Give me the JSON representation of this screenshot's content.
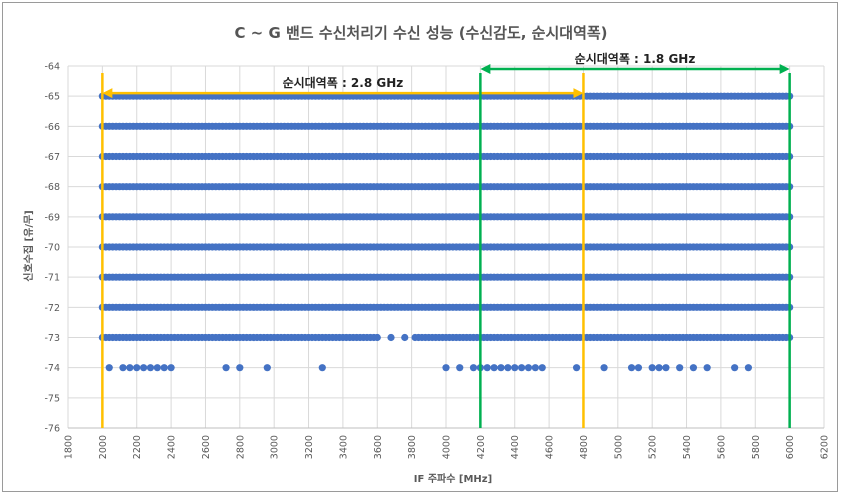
{
  "chart_data": {
    "type": "scatter",
    "title": "C ~ G 밴드 수신처리기 수신 성능 (수신감도, 순시대역폭)",
    "xlabel": "IF 주파수 [MHz]",
    "ylabel": "신호수집 [유/무]",
    "xlim": [
      1800,
      6200
    ],
    "ylim": [
      -76,
      -64
    ],
    "x_ticks": [
      1800,
      2000,
      2200,
      2400,
      2600,
      2800,
      3000,
      3200,
      3400,
      3600,
      3800,
      4000,
      4200,
      4400,
      4600,
      4800,
      5000,
      5200,
      5400,
      5600,
      5800,
      6000,
      6200
    ],
    "x_tick_step": 200,
    "y_ticks": [
      -64,
      -65,
      -66,
      -67,
      -68,
      -69,
      -70,
      -71,
      -72,
      -73,
      -74,
      -75,
      -76
    ],
    "grid": true,
    "marker_color": "#4472c4",
    "continuous_rows": {
      "levels": [
        -65,
        -66,
        -67,
        -68,
        -69,
        -70,
        -71,
        -72
      ],
      "x_start": 2000,
      "x_end": 6000,
      "x_step": 20
    },
    "series": [
      {
        "y": -73,
        "x": [
          2000,
          2020,
          2040,
          2060,
          2080,
          2100,
          2120,
          2140,
          2160,
          2180,
          2200,
          2220,
          2240,
          2260,
          2280,
          2300,
          2320,
          2340,
          2360,
          2380,
          2400,
          2420,
          2440,
          2460,
          2480,
          2500,
          2520,
          2540,
          2560,
          2580,
          2600,
          2620,
          2640,
          2660,
          2680,
          2700,
          2720,
          2740,
          2760,
          2780,
          2800,
          2820,
          2840,
          2860,
          2880,
          2900,
          2920,
          2940,
          2960,
          2980,
          3000,
          3020,
          3040,
          3060,
          3080,
          3100,
          3120,
          3140,
          3160,
          3180,
          3200,
          3220,
          3240,
          3260,
          3280,
          3300,
          3320,
          3340,
          3360,
          3380,
          3400,
          3420,
          3440,
          3460,
          3480,
          3500,
          3520,
          3540,
          3560,
          3580,
          3600,
          3680,
          3760,
          3820,
          3840,
          3860,
          3880,
          3900,
          3920,
          3940,
          3960,
          3980,
          4000,
          4020,
          4040,
          4060,
          4080,
          4100,
          4120,
          4140,
          4160,
          4180,
          4200,
          4220,
          4240,
          4260,
          4280,
          4300,
          4320,
          4340,
          4360,
          4380,
          4400,
          4420,
          4440,
          4460,
          4480,
          4500,
          4520,
          4540,
          4560,
          4580,
          4600,
          4620,
          4640,
          4660,
          4680,
          4700,
          4720,
          4740,
          4760,
          4780,
          4800,
          4820,
          4840,
          4860,
          4880,
          4900,
          4920,
          4940,
          4960,
          4980,
          5000,
          5020,
          5040,
          5060,
          5080,
          5100,
          5120,
          5140,
          5160,
          5180,
          5200,
          5220,
          5240,
          5260,
          5280,
          5300,
          5320,
          5340,
          5360,
          5380,
          5400,
          5420,
          5440,
          5460,
          5480,
          5500,
          5520,
          5540,
          5560,
          5580,
          5600,
          5620,
          5640,
          5660,
          5680,
          5700,
          5720,
          5740,
          5760,
          5780,
          5800,
          5820,
          5840,
          5860,
          5880,
          5900,
          5920,
          5940,
          5960,
          5980,
          6000
        ]
      },
      {
        "y": -74,
        "x": [
          2040,
          2120,
          2160,
          2200,
          2240,
          2280,
          2320,
          2360,
          2400,
          2720,
          2800,
          2960,
          3280,
          4000,
          4080,
          4160,
          4200,
          4240,
          4280,
          4320,
          4360,
          4400,
          4440,
          4480,
          4520,
          4560,
          4760,
          4920,
          5080,
          5120,
          5200,
          5240,
          5280,
          5360,
          5440,
          5520,
          5680,
          5760
        ]
      }
    ],
    "annotations": [
      {
        "label": "순시대역폭 : 2.8 GHz",
        "from": 2000,
        "to": 4800,
        "y": -64.9,
        "color": "#ffc000"
      },
      {
        "label": "순시대역폭 : 1.8 GHz",
        "from": 4200,
        "to": 6000,
        "y": -64.1,
        "color": "#00b050"
      }
    ]
  }
}
